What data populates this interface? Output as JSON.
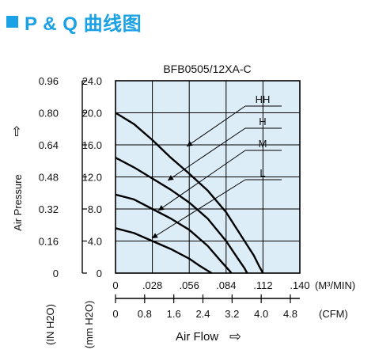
{
  "heading": {
    "title": "P & Q 曲线图",
    "accent": "#1aa1e6"
  },
  "chart_data": {
    "type": "line",
    "title": "BFB0505/12XA-C",
    "plot_bg": "#dcedf8",
    "grid": true,
    "ylabel": "Air Pressure",
    "ylabel_arrow": "⇧",
    "xlabel": "Air Flow",
    "xlabel_arrow": "⇨",
    "x_primary": {
      "unit": "(M³/MIN)",
      "min": 0,
      "max": 0.14,
      "ticks": [
        0,
        0.028,
        0.056,
        0.084,
        0.112,
        0.14
      ],
      "tick_labels": [
        "0",
        ".028",
        ".056",
        ".084",
        ".112",
        ".140"
      ]
    },
    "x_secondary": {
      "unit": "(CFM)",
      "ticks": [
        0,
        0.8,
        1.6,
        2.4,
        3.2,
        4.0,
        4.8
      ],
      "tick_labels": [
        "0",
        "0.8",
        "1.6",
        "2.4",
        "3.2",
        "4.0",
        "4.8"
      ]
    },
    "y_primary": {
      "unit": "(mm H2O)",
      "min": 0,
      "max": 24,
      "ticks": [
        0,
        4,
        8,
        12,
        16,
        20,
        24
      ],
      "tick_labels": [
        "0",
        "4.0",
        "8.0",
        "12.0",
        "16.0",
        "20.0",
        "24.0"
      ]
    },
    "y_secondary": {
      "unit": "(IN H2O)",
      "ticks": [
        0,
        0.16,
        0.32,
        0.48,
        0.64,
        0.8,
        0.96
      ],
      "tick_labels": [
        "0",
        "0.16",
        "0.32",
        "0.48",
        "0.64",
        "0.80",
        "0.96"
      ]
    },
    "series": [
      {
        "name": "HH",
        "x": [
          0,
          0.014,
          0.028,
          0.042,
          0.056,
          0.07,
          0.084,
          0.098,
          0.105,
          0.109,
          0.112
        ],
        "y": [
          20.0,
          18.6,
          16.6,
          14.4,
          12.4,
          10.3,
          7.6,
          4.0,
          2.2,
          0.9,
          0
        ]
      },
      {
        "name": "H",
        "x": [
          0,
          0.014,
          0.028,
          0.042,
          0.056,
          0.07,
          0.084,
          0.093,
          0.098,
          0.1
        ],
        "y": [
          14.4,
          13.2,
          11.8,
          10.4,
          8.8,
          6.8,
          4.0,
          1.8,
          0.6,
          0
        ]
      },
      {
        "name": "M",
        "x": [
          0,
          0.014,
          0.028,
          0.042,
          0.056,
          0.07,
          0.08,
          0.086,
          0.088
        ],
        "y": [
          9.8,
          9.2,
          8.0,
          6.8,
          5.4,
          3.4,
          1.5,
          0.4,
          0
        ]
      },
      {
        "name": "L",
        "x": [
          0,
          0.014,
          0.028,
          0.042,
          0.056,
          0.064,
          0.07,
          0.073
        ],
        "y": [
          5.6,
          5.0,
          4.0,
          3.0,
          1.8,
          0.9,
          0.3,
          0
        ]
      }
    ]
  }
}
